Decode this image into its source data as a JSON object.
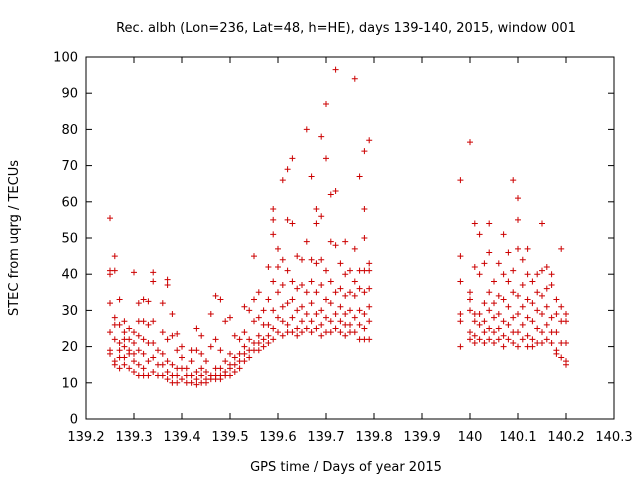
{
  "chart_data": {
    "type": "scatter",
    "title": "Rec. albh (Lon=236, Lat=48, h=HE), days 139-140, 2015, window 001",
    "xlabel": "GPS time / Days of year 2015",
    "ylabel": "STEC from uqrg / TECUs",
    "xlim": [
      139.2,
      140.3
    ],
    "ylim": [
      0,
      100
    ],
    "xticks": [
      "139.2",
      "139.3",
      "139.4",
      "139.5",
      "139.6",
      "139.7",
      "139.8",
      "139.9",
      "140",
      "140.1",
      "140.2",
      "140.3"
    ],
    "yticks": [
      "0",
      "10",
      "20",
      "30",
      "40",
      "50",
      "60",
      "70",
      "80",
      "90",
      "100"
    ],
    "grid": false,
    "legend": "none",
    "colors": {
      "points": "#cc0000",
      "axes": "#000000"
    },
    "marker": "plus",
    "points": [
      [
        139.25,
        55.5
      ],
      [
        139.25,
        41
      ],
      [
        139.25,
        40
      ],
      [
        139.25,
        32
      ],
      [
        139.25,
        24
      ],
      [
        139.25,
        19
      ],
      [
        139.25,
        18
      ],
      [
        139.26,
        45
      ],
      [
        139.26,
        41
      ],
      [
        139.26,
        28
      ],
      [
        139.26,
        26
      ],
      [
        139.26,
        22
      ],
      [
        139.26,
        16
      ],
      [
        139.26,
        15
      ],
      [
        139.27,
        33
      ],
      [
        139.27,
        26
      ],
      [
        139.27,
        21
      ],
      [
        139.27,
        19
      ],
      [
        139.27,
        17
      ],
      [
        139.27,
        14
      ],
      [
        139.28,
        27
      ],
      [
        139.28,
        24
      ],
      [
        139.28,
        22
      ],
      [
        139.28,
        20
      ],
      [
        139.28,
        17
      ],
      [
        139.28,
        15
      ],
      [
        139.29,
        25
      ],
      [
        139.29,
        22
      ],
      [
        139.29,
        19
      ],
      [
        139.29,
        18
      ],
      [
        139.29,
        14
      ],
      [
        139.3,
        40.5
      ],
      [
        139.3,
        24
      ],
      [
        139.3,
        21
      ],
      [
        139.3,
        18
      ],
      [
        139.3,
        16
      ],
      [
        139.3,
        13
      ],
      [
        139.31,
        32
      ],
      [
        139.31,
        27
      ],
      [
        139.31,
        23
      ],
      [
        139.31,
        19
      ],
      [
        139.31,
        15
      ],
      [
        139.31,
        12
      ],
      [
        139.32,
        33
      ],
      [
        139.32,
        27
      ],
      [
        139.32,
        22
      ],
      [
        139.32,
        18
      ],
      [
        139.32,
        14
      ],
      [
        139.32,
        12
      ],
      [
        139.33,
        32.5
      ],
      [
        139.33,
        26
      ],
      [
        139.33,
        21
      ],
      [
        139.33,
        16
      ],
      [
        139.33,
        12
      ],
      [
        139.34,
        40.5
      ],
      [
        139.34,
        38
      ],
      [
        139.34,
        27
      ],
      [
        139.34,
        21
      ],
      [
        139.34,
        17
      ],
      [
        139.34,
        13
      ],
      [
        139.35,
        19
      ],
      [
        139.35,
        15
      ],
      [
        139.35,
        12
      ],
      [
        139.36,
        32
      ],
      [
        139.36,
        24
      ],
      [
        139.36,
        18
      ],
      [
        139.36,
        15
      ],
      [
        139.36,
        12
      ],
      [
        139.37,
        38.5
      ],
      [
        139.37,
        37
      ],
      [
        139.37,
        22
      ],
      [
        139.37,
        16
      ],
      [
        139.37,
        13
      ],
      [
        139.37,
        11
      ],
      [
        139.38,
        29
      ],
      [
        139.38,
        23
      ],
      [
        139.38,
        15
      ],
      [
        139.38,
        12
      ],
      [
        139.38,
        10
      ],
      [
        139.39,
        23.5
      ],
      [
        139.39,
        19
      ],
      [
        139.39,
        14
      ],
      [
        139.39,
        12
      ],
      [
        139.39,
        10
      ],
      [
        139.4,
        20
      ],
      [
        139.4,
        17
      ],
      [
        139.4,
        14
      ],
      [
        139.4,
        11
      ],
      [
        139.41,
        14
      ],
      [
        139.41,
        12
      ],
      [
        139.41,
        10
      ],
      [
        139.42,
        19
      ],
      [
        139.42,
        16
      ],
      [
        139.42,
        12
      ],
      [
        139.42,
        10
      ],
      [
        139.43,
        25
      ],
      [
        139.43,
        19
      ],
      [
        139.43,
        13
      ],
      [
        139.43,
        11
      ],
      [
        139.43,
        9.5
      ],
      [
        139.44,
        23
      ],
      [
        139.44,
        18
      ],
      [
        139.44,
        14
      ],
      [
        139.44,
        12
      ],
      [
        139.44,
        10
      ],
      [
        139.45,
        16
      ],
      [
        139.45,
        13
      ],
      [
        139.45,
        11
      ],
      [
        139.45,
        10
      ],
      [
        139.46,
        29
      ],
      [
        139.46,
        20
      ],
      [
        139.46,
        12
      ],
      [
        139.46,
        11
      ],
      [
        139.47,
        34
      ],
      [
        139.47,
        22
      ],
      [
        139.47,
        14
      ],
      [
        139.47,
        12
      ],
      [
        139.47,
        11
      ],
      [
        139.48,
        33
      ],
      [
        139.48,
        19
      ],
      [
        139.48,
        14
      ],
      [
        139.48,
        12
      ],
      [
        139.48,
        11
      ],
      [
        139.49,
        27
      ],
      [
        139.49,
        16
      ],
      [
        139.49,
        13
      ],
      [
        139.49,
        12
      ],
      [
        139.5,
        28
      ],
      [
        139.5,
        18
      ],
      [
        139.5,
        15
      ],
      [
        139.5,
        14
      ],
      [
        139.5,
        12
      ],
      [
        139.51,
        23
      ],
      [
        139.51,
        17
      ],
      [
        139.51,
        15
      ],
      [
        139.51,
        13
      ],
      [
        139.52,
        22
      ],
      [
        139.52,
        18
      ],
      [
        139.52,
        16
      ],
      [
        139.52,
        14
      ],
      [
        139.53,
        31
      ],
      [
        139.53,
        24
      ],
      [
        139.53,
        20
      ],
      [
        139.53,
        18
      ],
      [
        139.53,
        16
      ],
      [
        139.54,
        30
      ],
      [
        139.54,
        22
      ],
      [
        139.54,
        19
      ],
      [
        139.54,
        17
      ],
      [
        139.55,
        45
      ],
      [
        139.55,
        33
      ],
      [
        139.55,
        27
      ],
      [
        139.55,
        21
      ],
      [
        139.55,
        19
      ],
      [
        139.56,
        35
      ],
      [
        139.56,
        28
      ],
      [
        139.56,
        23
      ],
      [
        139.56,
        21
      ],
      [
        139.56,
        19
      ],
      [
        139.57,
        30
      ],
      [
        139.57,
        26
      ],
      [
        139.57,
        22
      ],
      [
        139.57,
        20
      ],
      [
        139.58,
        42
      ],
      [
        139.58,
        33
      ],
      [
        139.58,
        26
      ],
      [
        139.58,
        23
      ],
      [
        139.58,
        21
      ],
      [
        139.59,
        58
      ],
      [
        139.59,
        55
      ],
      [
        139.59,
        51
      ],
      [
        139.59,
        38
      ],
      [
        139.59,
        30
      ],
      [
        139.59,
        25
      ],
      [
        139.59,
        22
      ],
      [
        139.6,
        47
      ],
      [
        139.6,
        42
      ],
      [
        139.6,
        35
      ],
      [
        139.6,
        28
      ],
      [
        139.6,
        24
      ],
      [
        139.61,
        66
      ],
      [
        139.61,
        44
      ],
      [
        139.61,
        37
      ],
      [
        139.61,
        31
      ],
      [
        139.61,
        27
      ],
      [
        139.61,
        23
      ],
      [
        139.62,
        69
      ],
      [
        139.62,
        55
      ],
      [
        139.62,
        41
      ],
      [
        139.62,
        32
      ],
      [
        139.62,
        26
      ],
      [
        139.62,
        24
      ],
      [
        139.63,
        72
      ],
      [
        139.63,
        54
      ],
      [
        139.63,
        38
      ],
      [
        139.63,
        33
      ],
      [
        139.63,
        28
      ],
      [
        139.63,
        24
      ],
      [
        139.64,
        45
      ],
      [
        139.64,
        36
      ],
      [
        139.64,
        30
      ],
      [
        139.64,
        25
      ],
      [
        139.64,
        23
      ],
      [
        139.65,
        44
      ],
      [
        139.65,
        37
      ],
      [
        139.65,
        31
      ],
      [
        139.65,
        27
      ],
      [
        139.65,
        24
      ],
      [
        139.66,
        80
      ],
      [
        139.66,
        49
      ],
      [
        139.66,
        35
      ],
      [
        139.66,
        29
      ],
      [
        139.66,
        25
      ],
      [
        139.67,
        67
      ],
      [
        139.67,
        44
      ],
      [
        139.67,
        38
      ],
      [
        139.67,
        32
      ],
      [
        139.67,
        27
      ],
      [
        139.67,
        24
      ],
      [
        139.68,
        58
      ],
      [
        139.68,
        54
      ],
      [
        139.68,
        43
      ],
      [
        139.68,
        35
      ],
      [
        139.68,
        29
      ],
      [
        139.68,
        25
      ],
      [
        139.69,
        78
      ],
      [
        139.69,
        56
      ],
      [
        139.69,
        44
      ],
      [
        139.69,
        37
      ],
      [
        139.69,
        30
      ],
      [
        139.69,
        26
      ],
      [
        139.69,
        23
      ],
      [
        139.7,
        87
      ],
      [
        139.7,
        72
      ],
      [
        139.7,
        41
      ],
      [
        139.7,
        33
      ],
      [
        139.7,
        28
      ],
      [
        139.7,
        24
      ],
      [
        139.71,
        62
      ],
      [
        139.71,
        49
      ],
      [
        139.71,
        38
      ],
      [
        139.71,
        32
      ],
      [
        139.71,
        27
      ],
      [
        139.71,
        24
      ],
      [
        139.72,
        96.5
      ],
      [
        139.72,
        63
      ],
      [
        139.72,
        48
      ],
      [
        139.72,
        35
      ],
      [
        139.72,
        29
      ],
      [
        139.72,
        25
      ],
      [
        139.73,
        43
      ],
      [
        139.73,
        36
      ],
      [
        139.73,
        31
      ],
      [
        139.73,
        27
      ],
      [
        139.73,
        24
      ],
      [
        139.74,
        49
      ],
      [
        139.74,
        40
      ],
      [
        139.74,
        34
      ],
      [
        139.74,
        29
      ],
      [
        139.74,
        26
      ],
      [
        139.74,
        23
      ],
      [
        139.75,
        41
      ],
      [
        139.75,
        35
      ],
      [
        139.75,
        30
      ],
      [
        139.75,
        26
      ],
      [
        139.75,
        24
      ],
      [
        139.76,
        94
      ],
      [
        139.76,
        47
      ],
      [
        139.76,
        38
      ],
      [
        139.76,
        34
      ],
      [
        139.76,
        28
      ],
      [
        139.76,
        24
      ],
      [
        139.77,
        67
      ],
      [
        139.77,
        41
      ],
      [
        139.77,
        36
      ],
      [
        139.77,
        30
      ],
      [
        139.77,
        26
      ],
      [
        139.77,
        22
      ],
      [
        139.78,
        74
      ],
      [
        139.78,
        58
      ],
      [
        139.78,
        50
      ],
      [
        139.78,
        41
      ],
      [
        139.78,
        35
      ],
      [
        139.78,
        29
      ],
      [
        139.78,
        25
      ],
      [
        139.78,
        22
      ],
      [
        139.79,
        77
      ],
      [
        139.79,
        43
      ],
      [
        139.79,
        41
      ],
      [
        139.79,
        36
      ],
      [
        139.79,
        31
      ],
      [
        139.79,
        27
      ],
      [
        139.79,
        22
      ],
      [
        139.98,
        66
      ],
      [
        139.98,
        45
      ],
      [
        139.98,
        38
      ],
      [
        139.98,
        29
      ],
      [
        139.98,
        27
      ],
      [
        139.98,
        20
      ],
      [
        140,
        76.5
      ],
      [
        140,
        35
      ],
      [
        140,
        33
      ],
      [
        140,
        30
      ],
      [
        140,
        24
      ],
      [
        140,
        22
      ],
      [
        140.01,
        54
      ],
      [
        140.01,
        42
      ],
      [
        140.01,
        29
      ],
      [
        140.01,
        27
      ],
      [
        140.01,
        23
      ],
      [
        140.01,
        21
      ],
      [
        140.02,
        51
      ],
      [
        140.02,
        40
      ],
      [
        140.02,
        29
      ],
      [
        140.02,
        26
      ],
      [
        140.02,
        22
      ],
      [
        140.03,
        43
      ],
      [
        140.03,
        32
      ],
      [
        140.03,
        27
      ],
      [
        140.03,
        24
      ],
      [
        140.03,
        21
      ],
      [
        140.04,
        54
      ],
      [
        140.04,
        46
      ],
      [
        140.04,
        35
      ],
      [
        140.04,
        30
      ],
      [
        140.04,
        25
      ],
      [
        140.04,
        22
      ],
      [
        140.05,
        38
      ],
      [
        140.05,
        32
      ],
      [
        140.05,
        28
      ],
      [
        140.05,
        24
      ],
      [
        140.05,
        21
      ],
      [
        140.06,
        43
      ],
      [
        140.06,
        34
      ],
      [
        140.06,
        29
      ],
      [
        140.06,
        25
      ],
      [
        140.06,
        22
      ],
      [
        140.07,
        51
      ],
      [
        140.07,
        40
      ],
      [
        140.07,
        33
      ],
      [
        140.07,
        27
      ],
      [
        140.07,
        23
      ],
      [
        140.07,
        20
      ],
      [
        140.08,
        46
      ],
      [
        140.08,
        38
      ],
      [
        140.08,
        31
      ],
      [
        140.08,
        26
      ],
      [
        140.08,
        22
      ],
      [
        140.09,
        66
      ],
      [
        140.09,
        41
      ],
      [
        140.09,
        35
      ],
      [
        140.09,
        28
      ],
      [
        140.09,
        24
      ],
      [
        140.09,
        21
      ],
      [
        140.1,
        61
      ],
      [
        140.1,
        55
      ],
      [
        140.1,
        47
      ],
      [
        140.1,
        34
      ],
      [
        140.1,
        29
      ],
      [
        140.1,
        24
      ],
      [
        140.1,
        20
      ],
      [
        140.11,
        44
      ],
      [
        140.11,
        37
      ],
      [
        140.11,
        31
      ],
      [
        140.11,
        26
      ],
      [
        140.11,
        22
      ],
      [
        140.12,
        47
      ],
      [
        140.12,
        40
      ],
      [
        140.12,
        33
      ],
      [
        140.12,
        28
      ],
      [
        140.12,
        23
      ],
      [
        140.12,
        20
      ],
      [
        140.13,
        38
      ],
      [
        140.13,
        32
      ],
      [
        140.13,
        27
      ],
      [
        140.13,
        22
      ],
      [
        140.13,
        20
      ],
      [
        140.14,
        40
      ],
      [
        140.14,
        35
      ],
      [
        140.14,
        30
      ],
      [
        140.14,
        25
      ],
      [
        140.14,
        21
      ],
      [
        140.15,
        54
      ],
      [
        140.15,
        41
      ],
      [
        140.15,
        34
      ],
      [
        140.15,
        29
      ],
      [
        140.15,
        24
      ],
      [
        140.15,
        21
      ],
      [
        140.16,
        42
      ],
      [
        140.16,
        36
      ],
      [
        140.16,
        31
      ],
      [
        140.16,
        26
      ],
      [
        140.16,
        22
      ],
      [
        140.17,
        40
      ],
      [
        140.17,
        37
      ],
      [
        140.17,
        28
      ],
      [
        140.17,
        24
      ],
      [
        140.17,
        21
      ],
      [
        140.18,
        33
      ],
      [
        140.18,
        29
      ],
      [
        140.18,
        24
      ],
      [
        140.18,
        19
      ],
      [
        140.18,
        18
      ],
      [
        140.19,
        47
      ],
      [
        140.19,
        31
      ],
      [
        140.19,
        27
      ],
      [
        140.19,
        21
      ],
      [
        140.19,
        17
      ],
      [
        140.2,
        29
      ],
      [
        140.2,
        27
      ],
      [
        140.2,
        21
      ],
      [
        140.2,
        16
      ],
      [
        140.2,
        15
      ]
    ]
  }
}
